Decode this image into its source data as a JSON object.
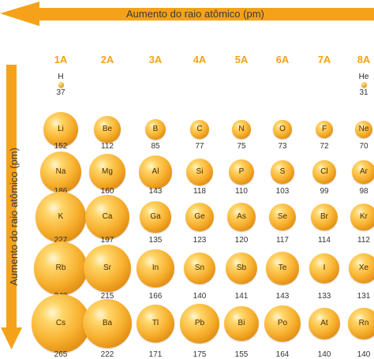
{
  "header_label": "Aumento do raio atômico (pm)",
  "side_label": "Aumento do raio atômico (pm)",
  "groups": [
    "1A",
    "2A",
    "3A",
    "4A",
    "5A",
    "6A",
    "7A",
    "8A"
  ],
  "colors": {
    "group_header": "#f5a21a",
    "arrow": "#f5a21a",
    "atom": "#f2a325"
  },
  "chart_data": {
    "type": "table",
    "columns": [
      "1A",
      "2A",
      "3A",
      "4A",
      "5A",
      "6A",
      "7A",
      "8A"
    ],
    "rows": [
      [
        {
          "symbol": "H",
          "radius": 37
        },
        null,
        null,
        null,
        null,
        null,
        null,
        {
          "symbol": "He",
          "radius": 31
        }
      ],
      [
        {
          "symbol": "Li",
          "radius": 152
        },
        {
          "symbol": "Be",
          "radius": 112
        },
        {
          "symbol": "B",
          "radius": 85
        },
        {
          "symbol": "C",
          "radius": 77
        },
        {
          "symbol": "N",
          "radius": 75
        },
        {
          "symbol": "O",
          "radius": 73
        },
        {
          "symbol": "F",
          "radius": 72
        },
        {
          "symbol": "Ne",
          "radius": 70
        }
      ],
      [
        {
          "symbol": "Na",
          "radius": 186
        },
        {
          "symbol": "Mg",
          "radius": 160
        },
        {
          "symbol": "Al",
          "radius": 143
        },
        {
          "symbol": "Si",
          "radius": 118
        },
        {
          "symbol": "P",
          "radius": 110
        },
        {
          "symbol": "S",
          "radius": 103
        },
        {
          "symbol": "Cl",
          "radius": 99
        },
        {
          "symbol": "Ar",
          "radius": 98
        }
      ],
      [
        {
          "symbol": "K",
          "radius": 227
        },
        {
          "symbol": "Ca",
          "radius": 197
        },
        {
          "symbol": "Ga",
          "radius": 135
        },
        {
          "symbol": "Ge",
          "radius": 123
        },
        {
          "symbol": "As",
          "radius": 120
        },
        {
          "symbol": "Se",
          "radius": 117
        },
        {
          "symbol": "Br",
          "radius": 114
        },
        {
          "symbol": "Kr",
          "radius": 112
        }
      ],
      [
        {
          "symbol": "Rb",
          "radius": 248
        },
        {
          "symbol": "Sr",
          "radius": 215
        },
        {
          "symbol": "In",
          "radius": 166
        },
        {
          "symbol": "Sn",
          "radius": 140
        },
        {
          "symbol": "Sb",
          "radius": 141
        },
        {
          "symbol": "Te",
          "radius": 143
        },
        {
          "symbol": "I",
          "radius": 133
        },
        {
          "symbol": "Xe",
          "radius": 131
        }
      ],
      [
        {
          "symbol": "Cs",
          "radius": 265
        },
        {
          "symbol": "Ba",
          "radius": 222
        },
        {
          "symbol": "Tl",
          "radius": 171
        },
        {
          "symbol": "Pb",
          "radius": 175
        },
        {
          "symbol": "Bi",
          "radius": 155
        },
        {
          "symbol": "Po",
          "radius": 164
        },
        {
          "symbol": "At",
          "radius": 140
        },
        {
          "symbol": "Rn",
          "radius": 140
        }
      ]
    ]
  }
}
